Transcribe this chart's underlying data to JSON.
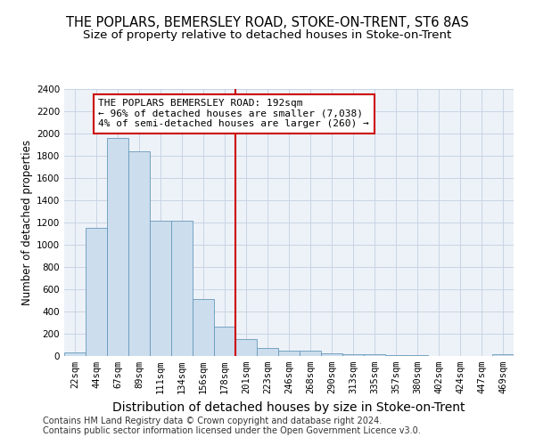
{
  "title1": "THE POPLARS, BEMERSLEY ROAD, STOKE-ON-TRENT, ST6 8AS",
  "title2": "Size of property relative to detached houses in Stoke-on-Trent",
  "xlabel": "Distribution of detached houses by size in Stoke-on-Trent",
  "ylabel": "Number of detached properties",
  "footer1": "Contains HM Land Registry data © Crown copyright and database right 2024.",
  "footer2": "Contains public sector information licensed under the Open Government Licence v3.0.",
  "annotation_line1": "THE POPLARS BEMERSLEY ROAD: 192sqm",
  "annotation_line2": "← 96% of detached houses are smaller (7,038)",
  "annotation_line3": "4% of semi-detached houses are larger (260) →",
  "bar_color": "#ccdded",
  "bar_edge_color": "#6699bb",
  "vline_color": "#cc0000",
  "annotation_box_edge": "#cc0000",
  "grid_color": "#c8d4e4",
  "background_color": "#edf2f8",
  "categories": [
    "22sqm",
    "44sqm",
    "67sqm",
    "89sqm",
    "111sqm",
    "134sqm",
    "156sqm",
    "178sqm",
    "201sqm",
    "223sqm",
    "246sqm",
    "268sqm",
    "290sqm",
    "313sqm",
    "335sqm",
    "357sqm",
    "380sqm",
    "402sqm",
    "424sqm",
    "447sqm",
    "469sqm"
  ],
  "values": [
    30,
    1150,
    1960,
    1840,
    1220,
    1220,
    510,
    265,
    150,
    75,
    50,
    45,
    25,
    18,
    14,
    10,
    5,
    4,
    4,
    4,
    18
  ],
  "ylim": [
    0,
    2400
  ],
  "yticks": [
    0,
    200,
    400,
    600,
    800,
    1000,
    1200,
    1400,
    1600,
    1800,
    2000,
    2200,
    2400
  ],
  "vline_x_index": 8,
  "title1_fontsize": 10.5,
  "title2_fontsize": 9.5,
  "xlabel_fontsize": 10,
  "ylabel_fontsize": 8.5,
  "tick_fontsize": 7.5,
  "annotation_fontsize": 8,
  "footer_fontsize": 7
}
